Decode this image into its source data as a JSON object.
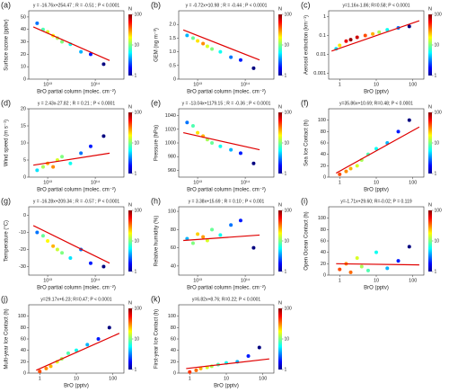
{
  "chart_data": [
    {
      "type": "scatter",
      "label": "(a)",
      "title": "y = -16.76x+254.47 ; R = -0.51 ; P < 0.0001",
      "xlabel": "BrO partial column (molec. cm⁻²)",
      "ylabel": "Surface ozone (ppbv)",
      "colorbar_label": "N",
      "xlog": true,
      "xlim": [
        4000000000000.0,
        400000000000000.0
      ],
      "xticks": [
        {
          "value": 10000000000000.0,
          "label": "10¹³"
        },
        {
          "value": 100000000000000.0,
          "label": "10¹⁴"
        }
      ],
      "ylim": [
        0,
        55
      ],
      "yticks": [
        0,
        10,
        20,
        30,
        40,
        50
      ],
      "x": [
        6000000000000.0,
        8000000000000.0,
        10000000000000.0,
        13000000000000.0,
        16000000000000.0,
        20000000000000.0,
        30000000000000.0,
        50000000000000.0,
        80000000000000.0,
        150000000000000.0
      ],
      "values": [
        45,
        40,
        38,
        35,
        33,
        30,
        28,
        22,
        20,
        12
      ],
      "density": [
        3,
        8,
        15,
        18,
        12,
        10,
        6,
        4,
        2,
        1
      ],
      "fit_x": [
        5000000000000.0,
        200000000000000.0
      ],
      "fit_y": [
        42,
        15
      ],
      "fit_color": "#e00000",
      "clim": [
        1,
        100
      ],
      "cticks": [
        1,
        10,
        100
      ]
    },
    {
      "type": "scatter",
      "label": "(b)",
      "title": "y = -0.72x+10.98 ; R = -0.44 ; P < 0.0001",
      "xlabel": "BrO partial column (molec. cm⁻²)",
      "ylabel": "GEM (ng m⁻³)",
      "colorbar_label": "N",
      "xlog": true,
      "xlim": [
        4000000000000.0,
        400000000000000.0
      ],
      "xticks": [
        {
          "value": 10000000000000.0,
          "label": "10¹³"
        },
        {
          "value": 100000000000000.0,
          "label": "10¹⁴"
        }
      ],
      "ylim": [
        0,
        2.5
      ],
      "yticks": [
        0,
        0.5,
        {
          "value": 1,
          "label": "1.0"
        },
        1.5,
        {
          "value": 2,
          "label": "2.0"
        }
      ],
      "x": [
        6000000000000.0,
        8000000000000.0,
        10000000000000.0,
        13000000000000.0,
        16000000000000.0,
        20000000000000.0,
        30000000000000.0,
        50000000000000.0,
        80000000000000.0,
        150000000000000.0
      ],
      "values": [
        1.6,
        1.5,
        1.4,
        1.3,
        1.2,
        1.1,
        1.0,
        0.8,
        0.7,
        0.4
      ],
      "density": [
        4,
        9,
        20,
        30,
        15,
        10,
        6,
        3,
        2,
        1
      ],
      "fit_x": [
        5000000000000.0,
        200000000000000.0
      ],
      "fit_y": [
        1.8,
        0.7
      ],
      "fit_color": "#e00000",
      "clim": [
        1,
        100
      ],
      "cticks": [
        1,
        10,
        100
      ]
    },
    {
      "type": "scatter",
      "label": "(c)",
      "title": "y=1.16x-1.86; R=0.58; P < 0.0001",
      "xlabel": "BrO (pptv)",
      "ylabel": "Aerosol extinction (km⁻¹)",
      "colorbar_label": "N",
      "xlog": true,
      "ylog": true,
      "xlim": [
        0.5,
        200
      ],
      "xticks": [
        1,
        10,
        100
      ],
      "ylim": [
        0.0005,
        2
      ],
      "yticks": [
        0.001,
        0.01,
        0.1,
        1
      ],
      "x": [
        0.8,
        1,
        1.5,
        2,
        3,
        5,
        8,
        12,
        20,
        40,
        80
      ],
      "values": [
        0.02,
        0.03,
        0.05,
        0.06,
        0.08,
        0.1,
        0.12,
        0.15,
        0.2,
        0.25,
        0.3
      ],
      "density": [
        5,
        20,
        60,
        90,
        70,
        40,
        25,
        12,
        6,
        3,
        1
      ],
      "fit_x": [
        0.6,
        150
      ],
      "fit_y": [
        0.015,
        0.6
      ],
      "fit_color": "#e00000",
      "clim": [
        1,
        100
      ],
      "cticks": [
        1,
        10,
        100
      ]
    },
    {
      "type": "scatter",
      "label": "(d)",
      "title": "y = 2.43x-27.82 ; R = 0.21 ; P < 0.0001",
      "xlabel": "BrO partial column (molec. cm⁻²)",
      "ylabel": "Wind speed (m s⁻¹)",
      "colorbar_label": "N",
      "xlog": true,
      "xlim": [
        4000000000000.0,
        400000000000000.0
      ],
      "xticks": [
        {
          "value": 10000000000000.0,
          "label": "10¹³"
        },
        {
          "value": 100000000000000.0,
          "label": "10¹⁴"
        }
      ],
      "ylim": [
        0,
        20
      ],
      "yticks": [
        0,
        5,
        10,
        15,
        20
      ],
      "x": [
        6000000000000.0,
        8000000000000.0,
        10000000000000.0,
        13000000000000.0,
        16000000000000.0,
        20000000000000.0,
        30000000000000.0,
        50000000000000.0,
        80000000000000.0,
        150000000000000.0
      ],
      "values": [
        2,
        3,
        4,
        3,
        5,
        6,
        4,
        7,
        9,
        12
      ],
      "density": [
        5,
        12,
        25,
        30,
        15,
        10,
        6,
        3,
        2,
        1
      ],
      "fit_x": [
        5000000000000.0,
        200000000000000.0
      ],
      "fit_y": [
        3.5,
        7
      ],
      "fit_color": "#e00000",
      "clim": [
        1,
        100
      ],
      "cticks": [
        1,
        10,
        100
      ]
    },
    {
      "type": "scatter",
      "label": "(e)",
      "title": "y = -13.04x+1179.15 ; R = -0.36 ; P < 0.0001",
      "xlabel": "BrO partial column (molec. cm⁻²)",
      "ylabel": "Pressure (hPa)",
      "colorbar_label": "N",
      "xlog": true,
      "xlim": [
        4000000000000.0,
        400000000000000.0
      ],
      "xticks": [
        {
          "value": 10000000000000.0,
          "label": "10¹³"
        },
        {
          "value": 100000000000000.0,
          "label": "10¹⁴"
        }
      ],
      "ylim": [
        950,
        1050
      ],
      "yticks": [
        960,
        980,
        1000,
        1020,
        1040
      ],
      "x": [
        6000000000000.0,
        8000000000000.0,
        10000000000000.0,
        13000000000000.0,
        16000000000000.0,
        20000000000000.0,
        30000000000000.0,
        50000000000000.0,
        80000000000000.0,
        150000000000000.0
      ],
      "values": [
        1030,
        1025,
        1015,
        1010,
        1005,
        1000,
        995,
        990,
        985,
        970
      ],
      "density": [
        3,
        8,
        20,
        25,
        12,
        9,
        6,
        4,
        2,
        1
      ],
      "fit_x": [
        5000000000000.0,
        200000000000000.0
      ],
      "fit_y": [
        1015,
        990
      ],
      "fit_color": "#e00000",
      "clim": [
        1,
        100
      ],
      "cticks": [
        1,
        10,
        100
      ]
    },
    {
      "type": "scatter",
      "label": "(f)",
      "title": "y=35.86x+10.69; R=0.48; P < 0.0001",
      "xlabel": "BrO (pptv)",
      "ylabel": "Sea Ice Contact (h)",
      "colorbar_label": "N",
      "xlog": true,
      "xlim": [
        0.5,
        200
      ],
      "xticks": [
        1,
        10,
        100
      ],
      "ylim": [
        0,
        120
      ],
      "yticks": [
        0,
        20,
        40,
        60,
        80,
        100
      ],
      "x": [
        1,
        1.5,
        2,
        3,
        4,
        6,
        10,
        20,
        40,
        80
      ],
      "values": [
        5,
        10,
        15,
        20,
        30,
        40,
        50,
        60,
        80,
        100
      ],
      "density": [
        40,
        30,
        25,
        15,
        12,
        8,
        6,
        4,
        2,
        1
      ],
      "fit_x": [
        0.8,
        150
      ],
      "fit_y": [
        7,
        88
      ],
      "fit_color": "#e00000",
      "clim": [
        1,
        100
      ],
      "cticks": [
        1,
        10,
        100
      ]
    },
    {
      "type": "scatter",
      "label": "(g)",
      "title": "y = -16.28x+209.34 ; R = -0.57 ; P < 0.0001",
      "xlabel": "BrO partial column (molec. cm⁻²)",
      "ylabel": "Temperature (°C)",
      "colorbar_label": "N",
      "xlog": true,
      "xlim": [
        4000000000000.0,
        400000000000000.0
      ],
      "xticks": [
        {
          "value": 10000000000000.0,
          "label": "10¹³"
        },
        {
          "value": 100000000000000.0,
          "label": "10¹⁴"
        }
      ],
      "ylim": [
        -35,
        5
      ],
      "yticks": [
        -30,
        -20,
        -10,
        0
      ],
      "x": [
        6000000000000.0,
        8000000000000.0,
        10000000000000.0,
        13000000000000.0,
        16000000000000.0,
        20000000000000.0,
        30000000000000.0,
        50000000000000.0,
        80000000000000.0,
        150000000000000.0
      ],
      "values": [
        -10,
        -12,
        -15,
        -18,
        -20,
        -22,
        -25,
        -20,
        -28,
        -30
      ],
      "density": [
        3,
        9,
        18,
        25,
        14,
        10,
        5,
        3,
        2,
        1
      ],
      "fit_x": [
        5000000000000.0,
        200000000000000.0
      ],
      "fit_y": [
        -6,
        -28
      ],
      "fit_color": "#e00000",
      "clim": [
        1,
        100
      ],
      "cticks": [
        1,
        10,
        100
      ]
    },
    {
      "type": "scatter",
      "label": "(h)",
      "title": "y = 3.38x+15.69 ; R = 0.10 ; P < 0.001",
      "xlabel": "BrO partial column (molec. cm⁻²)",
      "ylabel": "Relative humidity (%)",
      "colorbar_label": "N",
      "xlog": true,
      "xlim": [
        4000000000000.0,
        400000000000000.0
      ],
      "xticks": [
        {
          "value": 10000000000000.0,
          "label": "10¹³"
        },
        {
          "value": 100000000000000.0,
          "label": "10¹⁴"
        }
      ],
      "ylim": [
        30,
        105
      ],
      "yticks": [
        40,
        60,
        80,
        100
      ],
      "x": [
        6000000000000.0,
        8000000000000.0,
        10000000000000.0,
        13000000000000.0,
        16000000000000.0,
        20000000000000.0,
        30000000000000.0,
        50000000000000.0,
        80000000000000.0,
        150000000000000.0
      ],
      "values": [
        70,
        65,
        75,
        72,
        68,
        80,
        74,
        85,
        90,
        60
      ],
      "density": [
        4,
        10,
        22,
        28,
        15,
        9,
        6,
        3,
        2,
        1
      ],
      "fit_x": [
        5000000000000.0,
        200000000000000.0
      ],
      "fit_y": [
        68,
        74
      ],
      "fit_color": "#e00000",
      "clim": [
        1,
        100
      ],
      "cticks": [
        1,
        10,
        100
      ]
    },
    {
      "type": "scatter",
      "label": "(i)",
      "title": "y=-1.71x+29.60; R=-0.02; P = 0.119",
      "xlabel": "BrO (pptv)",
      "ylabel": "Open Ocean Contact (h)",
      "colorbar_label": "N",
      "xlog": true,
      "xlim": [
        0.5,
        200
      ],
      "xticks": [
        1,
        10,
        100
      ],
      "ylim": [
        0,
        120
      ],
      "yticks": [
        0,
        20,
        40,
        60,
        80,
        100
      ],
      "x": [
        1,
        1.5,
        2,
        3,
        4,
        6,
        10,
        20,
        40,
        80
      ],
      "values": [
        10,
        20,
        5,
        30,
        15,
        8,
        40,
        12,
        25,
        50
      ],
      "density": [
        40,
        30,
        35,
        15,
        12,
        8,
        6,
        4,
        2,
        1
      ],
      "fit_x": [
        0.8,
        150
      ],
      "fit_y": [
        20,
        18
      ],
      "fit_color": "#e00000",
      "clim": [
        1,
        100
      ],
      "cticks": [
        1,
        10,
        100
      ]
    },
    {
      "type": "scatter",
      "label": "(j)",
      "title": "y=29.17x+6.23; R=0.47; P < 0.0001",
      "xlabel": "BrO (pptv)",
      "ylabel": "Multi-year Ice Contact (h)",
      "colorbar_label": "N",
      "xlog": true,
      "xlim": [
        0.5,
        200
      ],
      "xticks": [
        1,
        10,
        100
      ],
      "ylim": [
        0,
        120
      ],
      "yticks": [
        0,
        20,
        40,
        60,
        80,
        100
      ],
      "x": [
        1,
        1.5,
        2,
        3,
        4,
        6,
        10,
        20,
        40,
        80
      ],
      "values": [
        3,
        8,
        12,
        20,
        25,
        35,
        40,
        50,
        60,
        80
      ],
      "density": [
        40,
        30,
        25,
        15,
        12,
        8,
        6,
        4,
        2,
        1
      ],
      "fit_x": [
        0.8,
        150
      ],
      "fit_y": [
        5,
        70
      ],
      "fit_color": "#e00000",
      "clim": [
        1,
        100
      ],
      "cticks": [
        1,
        10,
        100
      ]
    },
    {
      "type": "scatter",
      "label": "(k)",
      "title": "y=6.82x+8.76; R=0.22; P < 0.0001",
      "xlabel": "BrO (pptv)",
      "ylabel": "First-year Ice Contact (h)",
      "colorbar_label": "N",
      "xlog": true,
      "xlim": [
        0.5,
        200
      ],
      "xticks": [
        1,
        10,
        100
      ],
      "ylim": [
        0,
        120
      ],
      "yticks": [
        0,
        20,
        40,
        60,
        80,
        100
      ],
      "x": [
        1,
        1.5,
        2,
        3,
        4,
        6,
        10,
        20,
        40,
        80
      ],
      "values": [
        2,
        5,
        8,
        10,
        12,
        15,
        18,
        20,
        30,
        45
      ],
      "density": [
        45,
        35,
        25,
        15,
        12,
        8,
        6,
        4,
        2,
        1
      ],
      "fit_x": [
        0.8,
        150
      ],
      "fit_y": [
        8,
        25
      ],
      "fit_color": "#e00000",
      "clim": [
        1,
        100
      ],
      "cticks": [
        1,
        10,
        100
      ]
    }
  ]
}
